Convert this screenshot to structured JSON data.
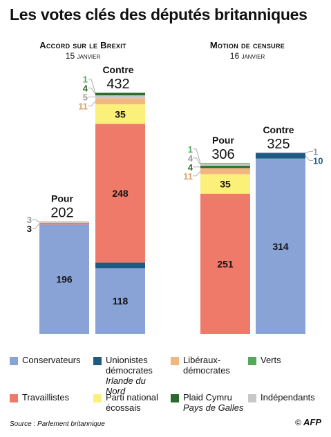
{
  "title": "Les votes clés des députés britanniques",
  "parties": [
    {
      "key": "con",
      "label": "Conservateurs",
      "sub": "",
      "color": "#8aa3d6"
    },
    {
      "key": "dup",
      "label": "Unionistes démocrates",
      "sub": "Irlande du Nord",
      "color": "#1d5b82"
    },
    {
      "key": "ld",
      "label": "Libéraux-démocrates",
      "sub": "",
      "color": "#f2b680"
    },
    {
      "key": "grn",
      "label": "Verts",
      "sub": "",
      "color": "#55a85b"
    },
    {
      "key": "lab",
      "label": "Travaillistes",
      "sub": "",
      "color": "#f07a6a"
    },
    {
      "key": "snp",
      "label": "Parti national écossais",
      "sub": "",
      "color": "#fbf07a"
    },
    {
      "key": "pc",
      "label": "Plaid Cymru",
      "sub": "Pays de Galles",
      "color": "#2c6a2c"
    },
    {
      "key": "ind",
      "label": "Indépendants",
      "sub": "",
      "color": "#c8c8c8"
    }
  ],
  "chart_data": [
    {
      "type": "bar",
      "stacked": true,
      "title": "Accord sur le Brexit",
      "date": "15 janvier",
      "ylim": [
        0,
        432
      ],
      "bars": [
        {
          "label": "Pour",
          "total": "202",
          "segments": [
            {
              "party": "con",
              "value": 196,
              "label": "196"
            },
            {
              "party": "lab",
              "value": 3,
              "label": "3"
            },
            {
              "party": "ind",
              "value": 3,
              "label": "3"
            }
          ]
        },
        {
          "label": "Contre",
          "total": "432",
          "segments": [
            {
              "party": "con",
              "value": 118,
              "label": "118"
            },
            {
              "party": "dup",
              "value": 10,
              "label": ""
            },
            {
              "party": "lab",
              "value": 248,
              "label": "248"
            },
            {
              "party": "snp",
              "value": 35,
              "label": "35"
            },
            {
              "party": "ld",
              "value": 11,
              "label": "11"
            },
            {
              "party": "ind",
              "value": 5,
              "label": "5"
            },
            {
              "party": "pc",
              "value": 4,
              "label": "4"
            },
            {
              "party": "grn",
              "value": 1,
              "label": "1"
            }
          ]
        }
      ]
    },
    {
      "type": "bar",
      "stacked": true,
      "title": "Motion de censure",
      "date": "16 janvier",
      "ylim": [
        0,
        432
      ],
      "bars": [
        {
          "label": "Pour",
          "total": "306",
          "segments": [
            {
              "party": "lab",
              "value": 251,
              "label": "251"
            },
            {
              "party": "snp",
              "value": 35,
              "label": "35"
            },
            {
              "party": "ld",
              "value": 11,
              "label": "11"
            },
            {
              "party": "pc",
              "value": 4,
              "label": "4"
            },
            {
              "party": "ind",
              "value": 4,
              "label": "4"
            },
            {
              "party": "grn",
              "value": 1,
              "label": "1"
            }
          ]
        },
        {
          "label": "Contre",
          "total": "325",
          "segments": [
            {
              "party": "con",
              "value": 314,
              "label": "314"
            },
            {
              "party": "dup",
              "value": 10,
              "label": "10"
            },
            {
              "party": "ind",
              "value": 1,
              "label": "1"
            }
          ]
        }
      ]
    }
  ],
  "source": "Source : Parlement britannique",
  "credit": {
    "symbol": "©",
    "text": "AFP"
  }
}
